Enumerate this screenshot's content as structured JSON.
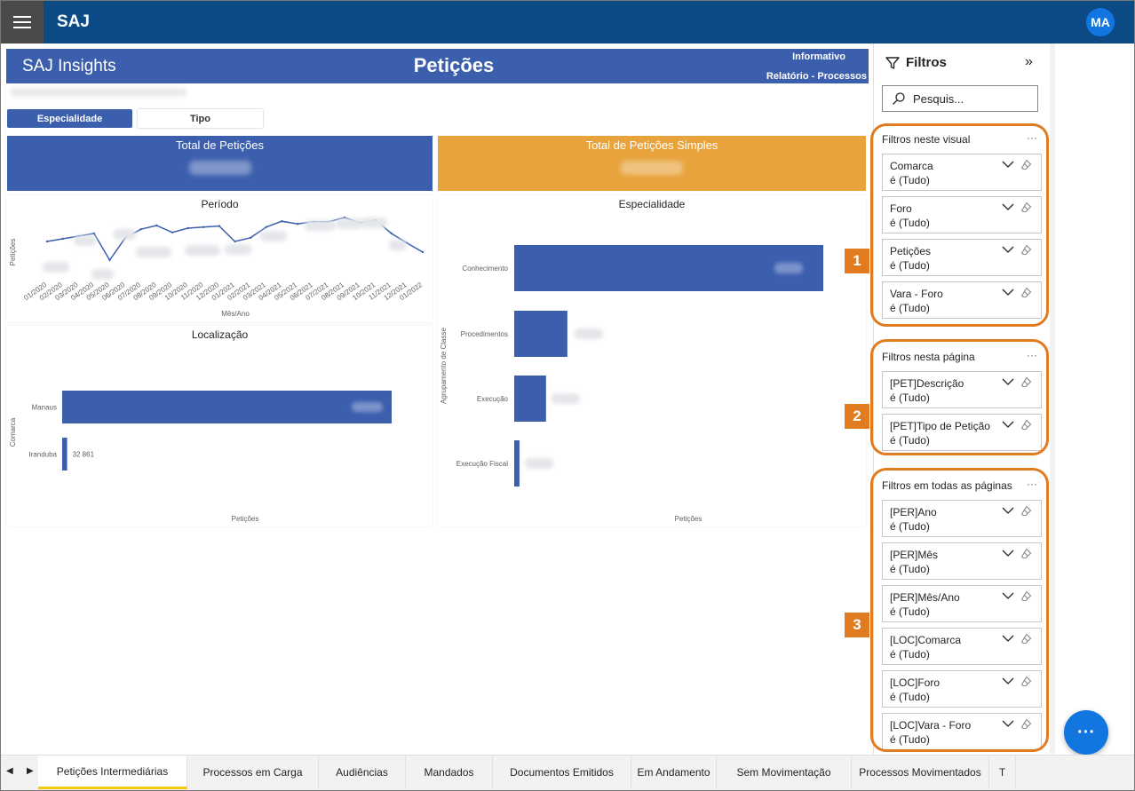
{
  "app": {
    "title": "SAJ",
    "user_initials": "MA"
  },
  "report": {
    "brand": "SAJ Insights",
    "page_title": "Petições",
    "links": [
      "Informativo",
      "Relatório - Processos"
    ],
    "toggle": {
      "active": "Especialidade",
      "inactive": "Tipo"
    }
  },
  "kpis": [
    {
      "label": "Total de Petições",
      "color": "#3c5fad"
    },
    {
      "label": "Total de Petições Simples",
      "color": "#e8a33c"
    }
  ],
  "chart_data": [
    {
      "type": "line",
      "title": "Período",
      "xlabel": "Mês/Ano",
      "ylabel": "Petições",
      "categories": [
        "01/2020",
        "02/2020",
        "03/2020",
        "04/2020",
        "05/2020",
        "06/2020",
        "07/2020",
        "08/2020",
        "09/2020",
        "10/2020",
        "11/2020",
        "12/2020",
        "01/2021",
        "02/2021",
        "03/2021",
        "04/2021",
        "05/2021",
        "06/2021",
        "07/2021",
        "08/2021",
        "09/2021",
        "10/2021",
        "11/2021",
        "12/2021",
        "01/2022"
      ],
      "series": [
        {
          "values": [
            0.55,
            0.6,
            0.65,
            0.7,
            0.2,
            0.62,
            0.78,
            0.85,
            0.72,
            0.8,
            0.82,
            0.84,
            0.55,
            0.62,
            0.82,
            0.93,
            0.88,
            0.92,
            0.92,
            1.0,
            0.9,
            0.95,
            0.7,
            0.52,
            0.35
          ]
        }
      ],
      "color": "#3c5fad"
    },
    {
      "type": "bar",
      "orientation": "horizontal",
      "title": "Localização",
      "xlabel": "Petições",
      "ylabel": "Comarca",
      "categories": [
        "Manaus",
        "Iranduba"
      ],
      "values": [
        1000,
        15
      ],
      "data_labels": [
        "",
        "32 861"
      ],
      "color": "#3c5fad"
    },
    {
      "type": "bar",
      "orientation": "horizontal",
      "title": "Especialidade",
      "xlabel": "Petições",
      "ylabel": "Agrupamento de Classe",
      "categories": [
        "Conhecimento",
        "Procedimentos",
        "Execução",
        "Execução Fiscal"
      ],
      "values": [
        100,
        17.2,
        10.3,
        1.7
      ],
      "color": "#3c5fad"
    }
  ],
  "filters": {
    "title": "Filtros",
    "search_placeholder": "Pesquis...",
    "sections": [
      {
        "label": "Filtros neste visual",
        "badge": "1",
        "cards": [
          {
            "name": "Comarca",
            "value": "é (Tudo)"
          },
          {
            "name": "Foro",
            "value": "é (Tudo)"
          },
          {
            "name": "Petições",
            "value": "é (Tudo)"
          },
          {
            "name": "Vara - Foro",
            "value": "é (Tudo)"
          }
        ]
      },
      {
        "label": "Filtros nesta página",
        "badge": "2",
        "cards": [
          {
            "name": "[PET]Descrição",
            "value": "é (Tudo)"
          },
          {
            "name": "[PET]Tipo de Petição",
            "value": "é (Tudo)"
          }
        ]
      },
      {
        "label": "Filtros em todas as páginas",
        "badge": "3",
        "cards": [
          {
            "name": "[PER]Ano",
            "value": "é (Tudo)"
          },
          {
            "name": "[PER]Mês",
            "value": "é (Tudo)"
          },
          {
            "name": "[PER]Mês/Ano",
            "value": "é (Tudo)"
          },
          {
            "name": "[LOC]Comarca",
            "value": "é (Tudo)"
          },
          {
            "name": "[LOC]Foro",
            "value": "é (Tudo)"
          },
          {
            "name": "[LOC]Vara - Foro",
            "value": "é (Tudo)"
          }
        ]
      }
    ]
  },
  "tabs": [
    "Petições Intermediárias",
    "Processos em Carga",
    "Audiências",
    "Mandados",
    "Documentos Emitidos",
    "Em Andamento",
    "Sem Movimentação",
    "Processos Movimentados",
    "T"
  ],
  "fab_label": "···",
  "accent_color": "#e07b1f"
}
